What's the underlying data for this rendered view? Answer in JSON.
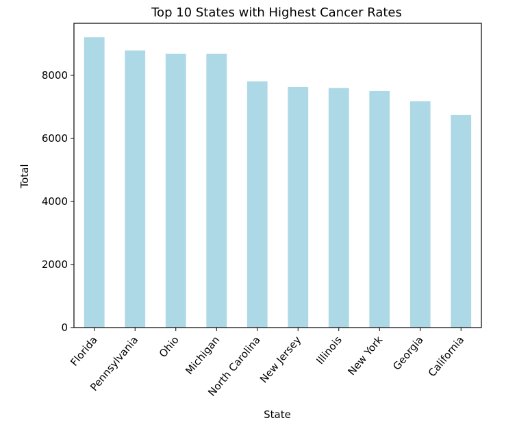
{
  "chart_data": {
    "type": "bar",
    "title": "Top 10 States with Highest Cancer Rates",
    "xlabel": "State",
    "ylabel": "Total",
    "categories": [
      "Florida",
      "Pennsylvania",
      "Ohio",
      "Michigan",
      "North Carolina",
      "New Jersey",
      "Illinois",
      "New York",
      "Georgia",
      "California"
    ],
    "values": [
      9210,
      8790,
      8680,
      8680,
      7810,
      7630,
      7600,
      7500,
      7180,
      6740
    ],
    "ylim": [
      0,
      9650
    ],
    "yticks": [
      0,
      2000,
      4000,
      6000,
      8000
    ],
    "grid": false,
    "bar_color": "#add8e6",
    "axis_color": "#000000"
  }
}
